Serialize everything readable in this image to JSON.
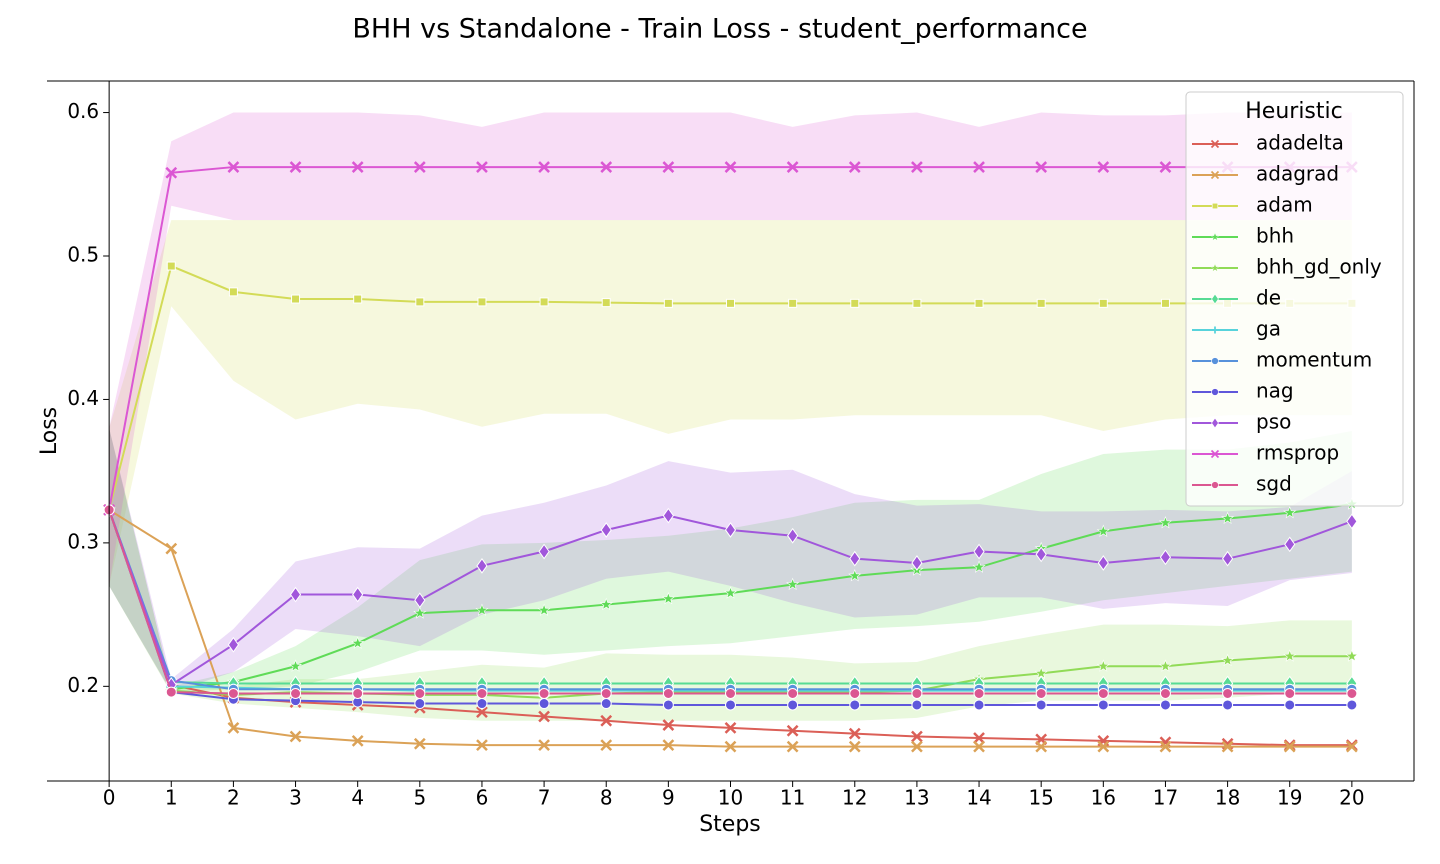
{
  "chart_data": {
    "type": "line",
    "title": "BHH vs Standalone - Train Loss - student_performance",
    "xlabel": "Steps",
    "ylabel": "Loss",
    "x": [
      0,
      1,
      2,
      3,
      4,
      5,
      6,
      7,
      8,
      9,
      10,
      11,
      12,
      13,
      14,
      15,
      16,
      17,
      18,
      19,
      20
    ],
    "xlim": [
      -1,
      21
    ],
    "ylim": [
      0.134,
      0.622
    ],
    "xticks": [
      0,
      1,
      2,
      3,
      4,
      5,
      6,
      7,
      8,
      9,
      10,
      11,
      12,
      13,
      14,
      15,
      16,
      17,
      18,
      19,
      20
    ],
    "yticks": [
      0.2,
      0.3,
      0.4,
      0.5,
      0.6
    ],
    "legend_title": "Heuristic",
    "legend": "upper right",
    "series": [
      {
        "name": "adadelta",
        "color": "#db5f57",
        "marker": "x",
        "values": [
          0.323,
          0.201,
          0.192,
          0.189,
          0.187,
          0.185,
          0.182,
          0.179,
          0.176,
          0.173,
          0.171,
          0.169,
          0.167,
          0.165,
          0.164,
          0.163,
          0.162,
          0.161,
          0.16,
          0.159,
          0.159
        ]
      },
      {
        "name": "adagrad",
        "color": "#dba257",
        "marker": "x",
        "values": [
          0.323,
          0.296,
          0.171,
          0.165,
          0.162,
          0.16,
          0.159,
          0.159,
          0.159,
          0.159,
          0.158,
          0.158,
          0.158,
          0.158,
          0.158,
          0.158,
          0.158,
          0.158,
          0.158,
          0.158,
          0.158
        ]
      },
      {
        "name": "adam",
        "color": "#d3db57",
        "marker": "square",
        "values": [
          0.323,
          0.493,
          0.475,
          0.47,
          0.47,
          0.468,
          0.468,
          0.468,
          0.4675,
          0.467,
          0.467,
          0.467,
          0.467,
          0.467,
          0.467,
          0.467,
          0.467,
          0.467,
          0.467,
          0.467,
          0.467
        ],
        "lower": [
          0.27,
          0.465,
          0.413,
          0.386,
          0.397,
          0.393,
          0.381,
          0.39,
          0.39,
          0.376,
          0.386,
          0.386,
          0.389,
          0.389,
          0.389,
          0.389,
          0.378,
          0.386,
          0.389,
          0.389,
          0.389
        ],
        "upper": [
          0.38,
          0.525,
          0.525,
          0.525,
          0.525,
          0.525,
          0.525,
          0.525,
          0.525,
          0.525,
          0.525,
          0.525,
          0.525,
          0.525,
          0.525,
          0.525,
          0.525,
          0.525,
          0.525,
          0.525,
          0.525
        ]
      },
      {
        "name": "bhh",
        "color": "#5fdb57",
        "marker": "star",
        "values": [
          0.323,
          0.198,
          0.203,
          0.214,
          0.23,
          0.251,
          0.253,
          0.253,
          0.257,
          0.261,
          0.265,
          0.271,
          0.277,
          0.281,
          0.283,
          0.296,
          0.308,
          0.314,
          0.317,
          0.321,
          0.327
        ],
        "lower": [
          0.27,
          0.196,
          0.198,
          0.2,
          0.21,
          0.225,
          0.225,
          0.222,
          0.225,
          0.228,
          0.23,
          0.235,
          0.24,
          0.242,
          0.245,
          0.252,
          0.26,
          0.265,
          0.27,
          0.275,
          0.28
        ],
        "upper": [
          0.38,
          0.2,
          0.21,
          0.228,
          0.255,
          0.288,
          0.299,
          0.3,
          0.302,
          0.305,
          0.31,
          0.318,
          0.328,
          0.33,
          0.33,
          0.348,
          0.362,
          0.365,
          0.365,
          0.37,
          0.378
        ]
      },
      {
        "name": "bhh_gd_only",
        "color": "#91db57",
        "marker": "star",
        "values": [
          0.323,
          0.197,
          0.194,
          0.196,
          0.195,
          0.194,
          0.194,
          0.192,
          0.195,
          0.196,
          0.196,
          0.196,
          0.196,
          0.197,
          0.205,
          0.209,
          0.214,
          0.214,
          0.218,
          0.221,
          0.221
        ],
        "lower": [
          0.27,
          0.195,
          0.188,
          0.185,
          0.182,
          0.178,
          0.176,
          0.176,
          0.176,
          0.176,
          0.176,
          0.176,
          0.176,
          0.178,
          0.186,
          0.19,
          0.19,
          0.19,
          0.192,
          0.195,
          0.195
        ],
        "upper": [
          0.38,
          0.2,
          0.2,
          0.205,
          0.205,
          0.21,
          0.215,
          0.213,
          0.223,
          0.222,
          0.222,
          0.22,
          0.216,
          0.217,
          0.228,
          0.236,
          0.243,
          0.243,
          0.242,
          0.246,
          0.246
        ]
      },
      {
        "name": "de",
        "color": "#57db94",
        "marker": "diamond",
        "values": [
          0.323,
          0.203,
          0.202,
          0.202,
          0.202,
          0.202,
          0.202,
          0.202,
          0.202,
          0.202,
          0.202,
          0.202,
          0.202,
          0.202,
          0.202,
          0.202,
          0.202,
          0.202,
          0.202,
          0.202,
          0.202
        ]
      },
      {
        "name": "ga",
        "color": "#57d3db",
        "marker": "plus",
        "values": [
          0.323,
          0.2,
          0.199,
          0.198,
          0.198,
          0.197,
          0.197,
          0.197,
          0.197,
          0.197,
          0.197,
          0.197,
          0.197,
          0.197,
          0.197,
          0.197,
          0.197,
          0.197,
          0.197,
          0.197,
          0.197
        ]
      },
      {
        "name": "momentum",
        "color": "#5791db",
        "marker": "circle",
        "values": [
          0.323,
          0.204,
          0.198,
          0.198,
          0.198,
          0.198,
          0.198,
          0.198,
          0.198,
          0.198,
          0.198,
          0.198,
          0.198,
          0.198,
          0.198,
          0.198,
          0.198,
          0.198,
          0.198,
          0.198,
          0.198
        ]
      },
      {
        "name": "nag",
        "color": "#5f57db",
        "marker": "circle",
        "values": [
          0.323,
          0.196,
          0.191,
          0.19,
          0.189,
          0.188,
          0.188,
          0.188,
          0.188,
          0.187,
          0.187,
          0.187,
          0.187,
          0.187,
          0.187,
          0.187,
          0.187,
          0.187,
          0.187,
          0.187,
          0.187
        ]
      },
      {
        "name": "pso",
        "color": "#a157db",
        "marker": "diamond",
        "values": [
          0.323,
          0.201,
          0.229,
          0.264,
          0.264,
          0.26,
          0.284,
          0.294,
          0.309,
          0.319,
          0.309,
          0.305,
          0.289,
          0.286,
          0.294,
          0.292,
          0.286,
          0.29,
          0.289,
          0.299,
          0.315
        ],
        "lower": [
          0.27,
          0.196,
          0.21,
          0.24,
          0.235,
          0.228,
          0.25,
          0.26,
          0.275,
          0.28,
          0.27,
          0.258,
          0.248,
          0.25,
          0.262,
          0.262,
          0.254,
          0.258,
          0.256,
          0.274,
          0.279
        ],
        "upper": [
          0.38,
          0.205,
          0.24,
          0.287,
          0.297,
          0.296,
          0.319,
          0.328,
          0.34,
          0.357,
          0.349,
          0.351,
          0.334,
          0.326,
          0.327,
          0.322,
          0.322,
          0.323,
          0.322,
          0.325,
          0.35
        ]
      },
      {
        "name": "rmsprop",
        "color": "#db57d3",
        "marker": "x",
        "values": [
          0.323,
          0.558,
          0.562,
          0.562,
          0.562,
          0.562,
          0.562,
          0.562,
          0.562,
          0.562,
          0.562,
          0.562,
          0.562,
          0.562,
          0.562,
          0.562,
          0.562,
          0.562,
          0.562,
          0.562,
          0.562
        ],
        "lower": [
          0.27,
          0.535,
          0.525,
          0.525,
          0.525,
          0.525,
          0.525,
          0.525,
          0.525,
          0.525,
          0.525,
          0.525,
          0.525,
          0.525,
          0.525,
          0.525,
          0.525,
          0.525,
          0.525,
          0.525,
          0.525
        ],
        "upper": [
          0.38,
          0.58,
          0.6,
          0.6,
          0.6,
          0.598,
          0.59,
          0.6,
          0.6,
          0.6,
          0.6,
          0.59,
          0.598,
          0.6,
          0.59,
          0.6,
          0.598,
          0.598,
          0.6,
          0.6,
          0.6
        ]
      },
      {
        "name": "sgd",
        "color": "#db5791",
        "marker": "circle",
        "values": [
          0.323,
          0.196,
          0.195,
          0.195,
          0.195,
          0.195,
          0.195,
          0.195,
          0.195,
          0.195,
          0.195,
          0.195,
          0.195,
          0.195,
          0.195,
          0.195,
          0.195,
          0.195,
          0.195,
          0.195,
          0.195
        ]
      }
    ]
  }
}
